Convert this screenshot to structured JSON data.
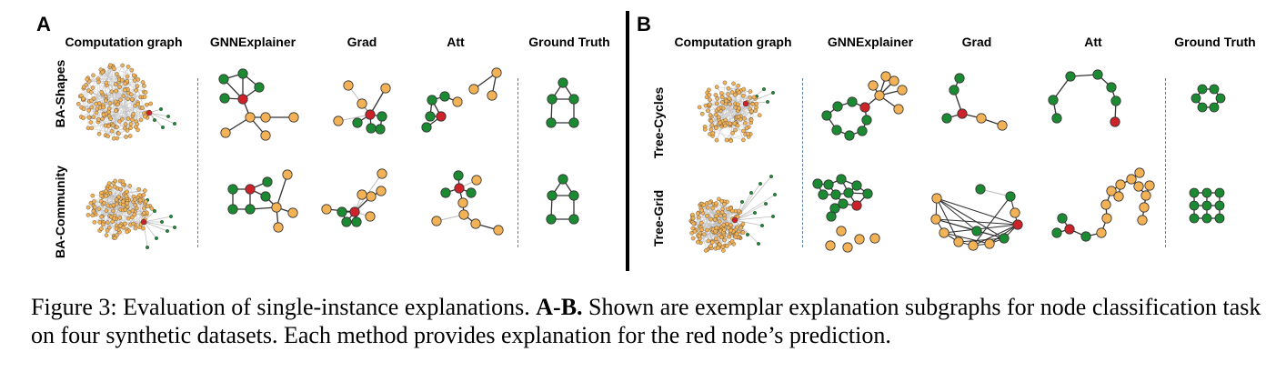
{
  "panels": {
    "a": {
      "letter": "A",
      "columns": [
        "Computation graph",
        "GNNExplainer",
        "Grad",
        "Att",
        "Ground Truth"
      ],
      "rows": [
        "BA-Shapes",
        "BA-Community"
      ]
    },
    "b": {
      "letter": "B",
      "columns": [
        "Computation graph",
        "GNNExplainer",
        "Grad",
        "Att",
        "Ground Truth"
      ],
      "rows": [
        "Tree-Cycles",
        "Tree-Grid"
      ]
    }
  },
  "colors": {
    "orange": "#f4b256",
    "green": "#1c8a32",
    "red": "#cc2229",
    "edge": "#333333",
    "faint_edge": "#bbbbbb",
    "dash": "#5b7fa6"
  },
  "caption": {
    "prefix": "Figure 3: Evaluation of single-instance explanations. ",
    "bold": "A-B.",
    "rest": " Shown are exemplar explanation subgraphs for node classification task on four synthetic datasets. Each method provides explanation for the red node’s prediction."
  }
}
